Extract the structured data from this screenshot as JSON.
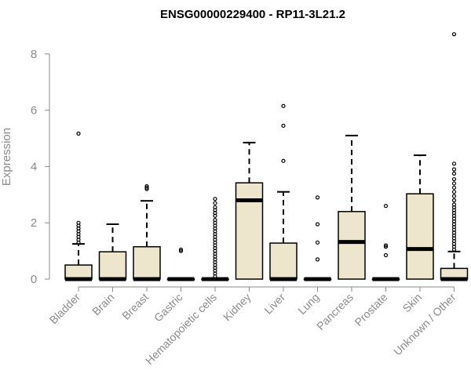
{
  "chart_data": {
    "type": "box",
    "title": "ENSG00000229400 - RP11-3L21.2",
    "xlabel": "",
    "ylabel": "Expression",
    "ylim": [
      0,
      8
    ],
    "yticks": [
      0,
      2,
      4,
      6,
      8
    ],
    "box_fill": "#ede6cd",
    "categories": [
      "Bladder",
      "Brain",
      "Breast",
      "Gastric",
      "Hematopoietic cells",
      "Kidney",
      "Liver",
      "Lung",
      "Pancreas",
      "Prostate",
      "Skin",
      "Unknown / Other"
    ],
    "boxes": [
      {
        "q1": 0,
        "median": 0,
        "q3": 0.5,
        "whisker_low": 0,
        "whisker_high": 1.25,
        "outliers": [
          5.17,
          2.0,
          1.9,
          1.8,
          1.7,
          1.6,
          1.5,
          1.4,
          1.3
        ]
      },
      {
        "q1": 0,
        "median": 0,
        "q3": 0.97,
        "whisker_low": 0,
        "whisker_high": 1.95,
        "outliers": []
      },
      {
        "q1": 0,
        "median": 0,
        "q3": 1.15,
        "whisker_low": 0,
        "whisker_high": 2.78,
        "outliers": [
          3.3,
          3.25,
          3.2
        ]
      },
      {
        "q1": 0,
        "median": 0,
        "q3": 0,
        "whisker_low": 0,
        "whisker_high": 0,
        "outliers": [
          1.05,
          1.0
        ]
      },
      {
        "q1": 0,
        "median": 0,
        "q3": 0,
        "whisker_low": 0,
        "whisker_high": 0,
        "outliers": [
          2.85,
          2.7,
          2.55,
          2.45,
          2.35,
          2.25,
          2.1,
          2.0,
          1.9,
          1.8,
          1.7,
          1.6,
          1.5,
          1.4,
          1.3,
          1.2,
          1.1,
          1.0,
          0.9,
          0.8,
          0.7,
          0.6,
          0.5,
          0.4,
          0.3,
          0.2,
          0.1
        ]
      },
      {
        "q1": 0,
        "median": 2.8,
        "q3": 3.42,
        "whisker_low": 0,
        "whisker_high": 4.85,
        "outliers": []
      },
      {
        "q1": 0,
        "median": 0,
        "q3": 1.28,
        "whisker_low": 0,
        "whisker_high": 3.1,
        "outliers": [
          6.15,
          5.45,
          4.2
        ]
      },
      {
        "q1": 0,
        "median": 0,
        "q3": 0,
        "whisker_low": 0,
        "whisker_high": 0,
        "outliers": [
          2.9,
          1.95,
          1.3,
          0.7
        ]
      },
      {
        "q1": 0,
        "median": 1.32,
        "q3": 2.4,
        "whisker_low": 0,
        "whisker_high": 5.1,
        "outliers": []
      },
      {
        "q1": 0,
        "median": 0,
        "q3": 0,
        "whisker_low": 0,
        "whisker_high": 0,
        "outliers": [
          2.6,
          1.2,
          1.15,
          0.85
        ]
      },
      {
        "q1": 0,
        "median": 1.07,
        "q3": 3.03,
        "whisker_low": 0,
        "whisker_high": 4.4,
        "outliers": []
      },
      {
        "q1": 0,
        "median": 0,
        "q3": 0.38,
        "whisker_low": 0,
        "whisker_high": 0.98,
        "outliers": [
          8.7,
          4.1,
          3.9,
          3.75,
          3.55,
          3.4,
          3.25,
          3.1,
          2.95,
          2.8,
          2.65,
          2.55,
          2.45,
          2.35,
          2.25,
          2.15,
          2.05,
          1.95,
          1.85,
          1.75,
          1.65,
          1.55,
          1.45,
          1.35,
          1.25,
          1.15,
          1.05
        ]
      }
    ]
  }
}
